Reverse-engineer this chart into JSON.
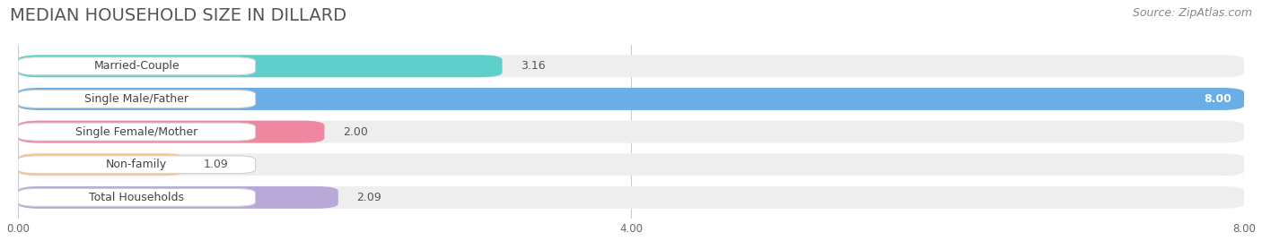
{
  "title": "MEDIAN HOUSEHOLD SIZE IN DILLARD",
  "source": "Source: ZipAtlas.com",
  "categories": [
    "Married-Couple",
    "Single Male/Father",
    "Single Female/Mother",
    "Non-family",
    "Total Households"
  ],
  "values": [
    3.16,
    8.0,
    2.0,
    1.09,
    2.09
  ],
  "bar_colors": [
    "#5ecfcb",
    "#6aaee8",
    "#f087a0",
    "#f5c98a",
    "#b8a8d8"
  ],
  "bar_bg_colors": [
    "#efefef",
    "#efefef",
    "#efefef",
    "#efefef",
    "#efefef"
  ],
  "value_labels": [
    "3.16",
    "8.00",
    "2.00",
    "1.09",
    "2.09"
  ],
  "value_inside": [
    false,
    true,
    false,
    false,
    false
  ],
  "xlim": [
    0,
    8.0
  ],
  "xticks": [
    0.0,
    4.0,
    8.0
  ],
  "xtick_labels": [
    "0.00",
    "4.00",
    "8.00"
  ],
  "title_fontsize": 14,
  "source_fontsize": 9,
  "bar_label_fontsize": 9,
  "value_label_fontsize": 9,
  "background_color": "#ffffff",
  "row_bg_colors": [
    "#f9f9f9",
    "#f9f9f9",
    "#f9f9f9",
    "#f9f9f9",
    "#f9f9f9"
  ]
}
